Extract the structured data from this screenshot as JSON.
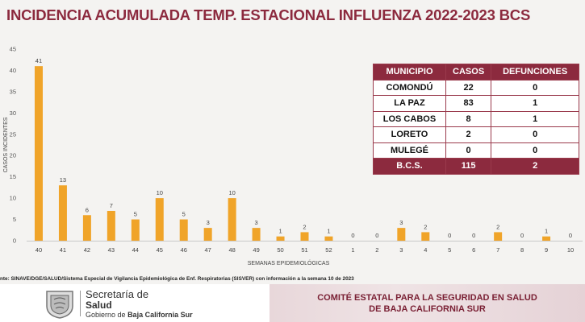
{
  "title": "INCIDENCIA ACUMULADA TEMP. ESTACIONAL INFLUENZA 2022-2023 BCS",
  "chart_data": {
    "type": "bar",
    "categories": [
      "40",
      "41",
      "42",
      "43",
      "44",
      "45",
      "46",
      "47",
      "48",
      "49",
      "50",
      "51",
      "52",
      "1",
      "2",
      "3",
      "4",
      "5",
      "6",
      "7",
      "8",
      "9",
      "10"
    ],
    "values": [
      41,
      13,
      6,
      7,
      5,
      10,
      5,
      3,
      10,
      3,
      1,
      2,
      1,
      0,
      0,
      3,
      2,
      0,
      0,
      2,
      0,
      1,
      0
    ],
    "xlabel": "SEMANAS EPIDEMIOLÓGICAS",
    "ylabel": "CASOS INCIDENTES",
    "ylim": [
      0,
      45
    ],
    "yticks": [
      0,
      5,
      10,
      15,
      20,
      25,
      30,
      35,
      40,
      45
    ],
    "grid": false,
    "bar_color": "#f0a429"
  },
  "table": {
    "headers": [
      "MUNICIPIO",
      "CASOS",
      "DEFUNCIONES"
    ],
    "rows": [
      [
        "COMONDÚ",
        "22",
        "0"
      ],
      [
        "LA PAZ",
        "83",
        "1"
      ],
      [
        "LOS CABOS",
        "8",
        "1"
      ],
      [
        "LORETO",
        "2",
        "0"
      ],
      [
        "MULEGÉ",
        "0",
        "0"
      ]
    ],
    "total": [
      "B.C.S.",
      "115",
      "2"
    ]
  },
  "source": "nte: SINAVE/DGE/SALUD/Sistema Especial de Vigilancia Epidemiológica de Enf. Respiratorias (SISVER) con información a la semana 10 de 2023",
  "footer": {
    "sec_title": "Secretaría de",
    "sec_name": "Salud",
    "gov_prefix": "Gobierno de",
    "gov_name": "Baja California Sur",
    "committee_line1": "COMITÉ ESTATAL PARA LA SEGURIDAD EN SALUD",
    "committee_line2": "DE BAJA CALIFORNIA SUR"
  },
  "colors": {
    "brand": "#8c2a3e",
    "bar": "#f0a429"
  }
}
